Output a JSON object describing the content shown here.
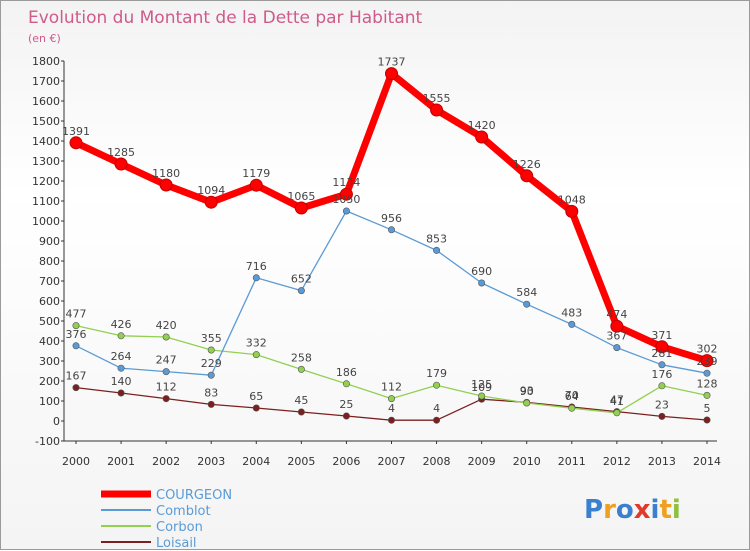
{
  "chart_data": {
    "type": "line",
    "title": "Evolution du Montant de la Dette par Habitant",
    "subtitle": "(en €)",
    "categories": [
      "2000",
      "2001",
      "2002",
      "2003",
      "2004",
      "2005",
      "2006",
      "2007",
      "2008",
      "2009",
      "2010",
      "2011",
      "2012",
      "2013",
      "2014"
    ],
    "y_ticks": [
      -100,
      0,
      100,
      200,
      300,
      400,
      500,
      600,
      700,
      800,
      900,
      1000,
      1100,
      1200,
      1300,
      1400,
      1500,
      1600,
      1700,
      1800
    ],
    "ylim": [
      -100,
      1800
    ],
    "grid": false,
    "legend_position": "bottom-left",
    "series": [
      {
        "name": "COURGEON",
        "color": "#ff0000",
        "values": [
          1391,
          1285,
          1180,
          1094,
          1179,
          1065,
          1134,
          1737,
          1555,
          1420,
          1226,
          1048,
          474,
          371,
          302
        ]
      },
      {
        "name": "Comblot",
        "color": "#5b9bd5",
        "values": [
          376,
          264,
          247,
          229,
          716,
          652,
          1050,
          956,
          853,
          690,
          584,
          483,
          367,
          281,
          239
        ]
      },
      {
        "name": "Corbon",
        "color": "#92d050",
        "values": [
          477,
          426,
          420,
          355,
          332,
          258,
          186,
          112,
          179,
          125,
          90,
          64,
          41,
          176,
          128
        ]
      },
      {
        "name": "Loisail",
        "color": "#7b1f1f",
        "values": [
          167,
          140,
          112,
          83,
          65,
          45,
          25,
          4,
          4,
          109,
          93,
          70,
          47,
          23,
          5
        ]
      }
    ]
  },
  "branding": {
    "text": "Proxiti",
    "letters": [
      "P",
      "r",
      "o",
      "x",
      "i",
      "t",
      "i"
    ],
    "colors": [
      "#3a7fd0",
      "#f0a020",
      "#3a7fd0",
      "#e03a2a",
      "#3a7fd0",
      "#f0a020",
      "#90c040"
    ]
  }
}
